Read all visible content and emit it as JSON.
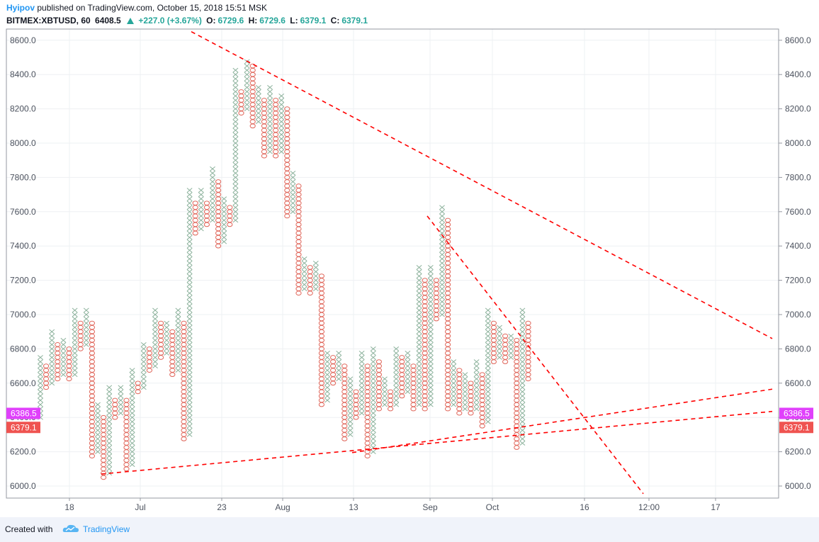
{
  "header": {
    "author": "Hyipov",
    "published": "published on TradingView.com, October 15, 2018 15:51 MSK",
    "symbol": "BITMEX:XBTUSD, 60",
    "last": "6408.5",
    "change": "+227.0 (+3.67%)",
    "o_label": "O:",
    "o_value": "6729.6",
    "h_label": "H:",
    "h_value": "6729.6",
    "l_label": "L:",
    "l_value": "6379.1",
    "c_label": "C:",
    "c_value": "6379.1"
  },
  "footer": {
    "created_with": "Created with",
    "brand": "TradingView"
  },
  "colors": {
    "x_column": "#8bb19b",
    "o_column": "#e0665a",
    "trendline": "#ff0000",
    "label_pink": "#e040fb",
    "label_red": "#ef5350",
    "grid": "#eef0f3",
    "axis_text": "#4c525e",
    "accent": "#2196f3"
  },
  "chart_data": {
    "type": "point-and-figure",
    "y_ticks": [
      "8600.0",
      "8400.0",
      "8200.0",
      "8000.0",
      "7800.0",
      "7600.0",
      "7400.0",
      "7200.0",
      "7000.0",
      "6800.0",
      "6600.0",
      "6400.0",
      "6200.0",
      "6000.0"
    ],
    "ylim": [
      5950,
      8660
    ],
    "x_ticks": [
      "18",
      "Jul",
      "23",
      "Aug",
      "13",
      "Sep",
      "Oct",
      "16",
      "12:00",
      "17"
    ],
    "price_labels": [
      {
        "value": "6386.5",
        "price": 6386.5,
        "color": "#e040fb"
      },
      {
        "value": "6379.1",
        "price": 6379.1,
        "color": "#ef5350"
      }
    ],
    "box_size": 25,
    "columns": [
      {
        "t": "X",
        "from": 6400,
        "to": 6750
      },
      {
        "t": "O",
        "from": 6700,
        "to": 6575
      },
      {
        "t": "X",
        "from": 6600,
        "to": 6900
      },
      {
        "t": "O",
        "from": 6825,
        "to": 6625
      },
      {
        "t": "X",
        "from": 6650,
        "to": 6850
      },
      {
        "t": "O",
        "from": 6800,
        "to": 6625
      },
      {
        "t": "X",
        "from": 6650,
        "to": 7025
      },
      {
        "t": "O",
        "from": 6950,
        "to": 6800
      },
      {
        "t": "X",
        "from": 6825,
        "to": 7025
      },
      {
        "t": "O",
        "from": 6950,
        "to": 6175
      },
      {
        "t": "X",
        "from": 6200,
        "to": 6475
      },
      {
        "t": "O",
        "from": 6400,
        "to": 6050
      },
      {
        "t": "X",
        "from": 6075,
        "to": 6575
      },
      {
        "t": "O",
        "from": 6500,
        "to": 6400
      },
      {
        "t": "X",
        "from": 6425,
        "to": 6575
      },
      {
        "t": "O",
        "from": 6500,
        "to": 6100
      },
      {
        "t": "X",
        "from": 6125,
        "to": 6675
      },
      {
        "t": "O",
        "from": 6600,
        "to": 6550
      },
      {
        "t": "X",
        "from": 6575,
        "to": 6825
      },
      {
        "t": "O",
        "from": 6800,
        "to": 6675
      },
      {
        "t": "X",
        "from": 6700,
        "to": 7025
      },
      {
        "t": "O",
        "from": 6950,
        "to": 6750
      },
      {
        "t": "X",
        "from": 6775,
        "to": 6950
      },
      {
        "t": "O",
        "from": 6900,
        "to": 6650
      },
      {
        "t": "X",
        "from": 6675,
        "to": 7025
      },
      {
        "t": "O",
        "from": 6950,
        "to": 6275
      },
      {
        "t": "X",
        "from": 6300,
        "to": 7725
      },
      {
        "t": "O",
        "from": 7650,
        "to": 7475
      },
      {
        "t": "X",
        "from": 7500,
        "to": 7725
      },
      {
        "t": "O",
        "from": 7650,
        "to": 7525
      },
      {
        "t": "X",
        "from": 7550,
        "to": 7850
      },
      {
        "t": "O",
        "from": 7775,
        "to": 7400
      },
      {
        "t": "X",
        "from": 7425,
        "to": 7675
      },
      {
        "t": "O",
        "from": 7625,
        "to": 7525
      },
      {
        "t": "X",
        "from": 7550,
        "to": 8425
      },
      {
        "t": "O",
        "from": 8300,
        "to": 8175
      },
      {
        "t": "X",
        "from": 8200,
        "to": 8475
      },
      {
        "t": "O",
        "from": 8450,
        "to": 8100
      },
      {
        "t": "X",
        "from": 8125,
        "to": 8325
      },
      {
        "t": "O",
        "from": 8250,
        "to": 7925
      },
      {
        "t": "X",
        "from": 7950,
        "to": 8325
      },
      {
        "t": "O",
        "from": 8250,
        "to": 7925
      },
      {
        "t": "X",
        "from": 7950,
        "to": 8275
      },
      {
        "t": "O",
        "from": 8200,
        "to": 7575
      },
      {
        "t": "X",
        "from": 7600,
        "to": 7825
      },
      {
        "t": "O",
        "from": 7750,
        "to": 7125
      },
      {
        "t": "X",
        "from": 7150,
        "to": 7325
      },
      {
        "t": "O",
        "from": 7275,
        "to": 7125
      },
      {
        "t": "X",
        "from": 7150,
        "to": 7300
      },
      {
        "t": "O",
        "from": 7225,
        "to": 6475
      },
      {
        "t": "X",
        "from": 6500,
        "to": 6775
      },
      {
        "t": "O",
        "from": 6750,
        "to": 6600
      },
      {
        "t": "X",
        "from": 6625,
        "to": 6775
      },
      {
        "t": "O",
        "from": 6700,
        "to": 6275
      },
      {
        "t": "X",
        "from": 6300,
        "to": 6625
      },
      {
        "t": "O",
        "from": 6550,
        "to": 6400
      },
      {
        "t": "X",
        "from": 6425,
        "to": 6775
      },
      {
        "t": "O",
        "from": 6700,
        "to": 6175
      },
      {
        "t": "X",
        "from": 6200,
        "to": 6800
      },
      {
        "t": "O",
        "from": 6725,
        "to": 6450
      },
      {
        "t": "X",
        "from": 6475,
        "to": 6625
      },
      {
        "t": "O",
        "from": 6550,
        "to": 6450
      },
      {
        "t": "X",
        "from": 6475,
        "to": 6800
      },
      {
        "t": "O",
        "from": 6750,
        "to": 6525
      },
      {
        "t": "X",
        "from": 6550,
        "to": 6775
      },
      {
        "t": "O",
        "from": 6700,
        "to": 6450
      },
      {
        "t": "X",
        "from": 6475,
        "to": 7275
      },
      {
        "t": "O",
        "from": 7200,
        "to": 6450
      },
      {
        "t": "X",
        "from": 6475,
        "to": 7275
      },
      {
        "t": "O",
        "from": 7200,
        "to": 6975
      },
      {
        "t": "X",
        "from": 7000,
        "to": 7625
      },
      {
        "t": "O",
        "from": 7550,
        "to": 6450
      },
      {
        "t": "X",
        "from": 6475,
        "to": 6725
      },
      {
        "t": "O",
        "from": 6675,
        "to": 6425
      },
      {
        "t": "X",
        "from": 6450,
        "to": 6650
      },
      {
        "t": "O",
        "from": 6600,
        "to": 6425
      },
      {
        "t": "X",
        "from": 6450,
        "to": 6725
      },
      {
        "t": "O",
        "from": 6650,
        "to": 6350
      },
      {
        "t": "X",
        "from": 6375,
        "to": 7025
      },
      {
        "t": "O",
        "from": 6950,
        "to": 6725
      },
      {
        "t": "X",
        "from": 6750,
        "to": 6925
      },
      {
        "t": "O",
        "from": 6875,
        "to": 6725
      },
      {
        "t": "X",
        "from": 6750,
        "to": 6875
      },
      {
        "t": "O",
        "from": 6850,
        "to": 6225
      },
      {
        "t": "X",
        "from": 6250,
        "to": 7025
      },
      {
        "t": "O",
        "from": 6950,
        "to": 6625
      }
    ],
    "trendlines": [
      {
        "from": {
          "col": "Jul",
          "price": 8650
        },
        "to": {
          "col": "17+",
          "price": 6860
        }
      },
      {
        "from": {
          "col": "Sep",
          "price": 7575
        },
        "to": {
          "col": "12:00",
          "price": 5955
        }
      },
      {
        "from": {
          "col": "22",
          "price": 6070
        },
        "to": {
          "col": "17+",
          "price": 6435
        }
      },
      {
        "from": {
          "col": "13",
          "price": 6195
        },
        "to": {
          "col": "17+",
          "price": 6565
        }
      }
    ]
  }
}
